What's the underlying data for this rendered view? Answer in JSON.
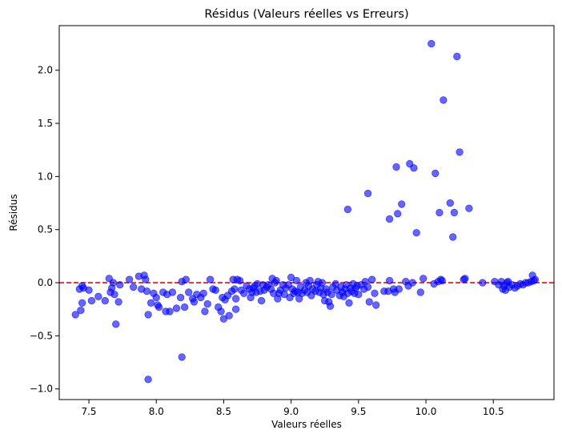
{
  "chart_data": {
    "type": "scatter",
    "title": "Résidus (Valeurs réelles vs Erreurs)",
    "xlabel": "Valeurs réelles",
    "ylabel": "Résidus",
    "xlim": [
      7.28,
      10.95
    ],
    "ylim": [
      -1.1,
      2.42
    ],
    "x_ticks": [
      7.5,
      8.0,
      8.5,
      9.0,
      9.5,
      10.0,
      10.5
    ],
    "x_tick_labels": [
      "7.5",
      "8.0",
      "8.5",
      "9.0",
      "9.5",
      "10.0",
      "10.5"
    ],
    "y_ticks": [
      -1.0,
      -0.5,
      0.0,
      0.5,
      1.0,
      1.5,
      2.0
    ],
    "y_tick_labels": [
      "−1.0",
      "−0.5",
      "0.0",
      "0.5",
      "1.0",
      "1.5",
      "2.0"
    ],
    "grid": false,
    "point_color": "#0000ff",
    "point_alpha": 0.6,
    "reference_line": {
      "y": 0,
      "color": "#ff0000",
      "style": "dashed"
    },
    "points": [
      [
        7.4,
        -0.3
      ],
      [
        7.43,
        -0.06
      ],
      [
        7.45,
        -0.03
      ],
      [
        7.46,
        -0.05
      ],
      [
        7.45,
        -0.19
      ],
      [
        7.44,
        -0.26
      ],
      [
        7.5,
        -0.07
      ],
      [
        7.52,
        -0.17
      ],
      [
        7.57,
        -0.13
      ],
      [
        7.62,
        -0.17
      ],
      [
        7.65,
        0.04
      ],
      [
        7.66,
        -0.09
      ],
      [
        7.67,
        -0.05
      ],
      [
        7.68,
        0.0
      ],
      [
        7.69,
        -0.11
      ],
      [
        7.7,
        -0.39
      ],
      [
        7.72,
        -0.18
      ],
      [
        7.73,
        -0.02
      ],
      [
        7.8,
        0.03
      ],
      [
        7.83,
        -0.04
      ],
      [
        7.87,
        0.06
      ],
      [
        7.89,
        -0.06
      ],
      [
        7.91,
        0.07
      ],
      [
        7.92,
        0.03
      ],
      [
        7.93,
        -0.08
      ],
      [
        7.94,
        -0.3
      ],
      [
        7.94,
        -0.91
      ],
      [
        7.96,
        -0.19
      ],
      [
        7.98,
        -0.1
      ],
      [
        8.0,
        -0.14
      ],
      [
        8.01,
        -0.21
      ],
      [
        8.02,
        -0.23
      ],
      [
        8.05,
        -0.09
      ],
      [
        8.07,
        -0.27
      ],
      [
        8.08,
        -0.11
      ],
      [
        8.1,
        -0.27
      ],
      [
        8.12,
        -0.09
      ],
      [
        8.15,
        -0.24
      ],
      [
        8.18,
        -0.14
      ],
      [
        8.19,
        -0.7
      ],
      [
        8.19,
        0.01
      ],
      [
        8.21,
        -0.23
      ],
      [
        8.22,
        0.03
      ],
      [
        8.24,
        -0.09
      ],
      [
        8.27,
        -0.15
      ],
      [
        8.28,
        -0.18
      ],
      [
        8.3,
        -0.11
      ],
      [
        8.33,
        -0.14
      ],
      [
        8.35,
        -0.1
      ],
      [
        8.36,
        -0.27
      ],
      [
        8.38,
        -0.2
      ],
      [
        8.4,
        0.03
      ],
      [
        8.42,
        -0.06
      ],
      [
        8.44,
        -0.07
      ],
      [
        8.46,
        -0.23
      ],
      [
        8.48,
        -0.27
      ],
      [
        8.49,
        -0.14
      ],
      [
        8.5,
        -0.34
      ],
      [
        8.51,
        -0.16
      ],
      [
        8.53,
        -0.12
      ],
      [
        8.54,
        -0.31
      ],
      [
        8.56,
        -0.08
      ],
      [
        8.57,
        0.03
      ],
      [
        8.58,
        -0.06
      ],
      [
        8.59,
        -0.15
      ],
      [
        8.59,
        -0.25
      ],
      [
        8.6,
        0.03
      ],
      [
        8.62,
        0.02
      ],
      [
        8.63,
        -0.07
      ],
      [
        8.65,
        -0.1
      ],
      [
        8.67,
        -0.03
      ],
      [
        8.69,
        -0.06
      ],
      [
        8.7,
        -0.14
      ],
      [
        8.71,
        -0.09
      ],
      [
        8.72,
        -0.05
      ],
      [
        8.73,
        -0.03
      ],
      [
        8.74,
        -0.09
      ],
      [
        8.75,
        -0.01
      ],
      [
        8.77,
        -0.08
      ],
      [
        8.78,
        -0.17
      ],
      [
        8.79,
        -0.02
      ],
      [
        8.8,
        -0.07
      ],
      [
        8.82,
        -0.04
      ],
      [
        8.83,
        -0.02
      ],
      [
        8.85,
        -0.06
      ],
      [
        8.86,
        0.04
      ],
      [
        8.87,
        -0.1
      ],
      [
        8.88,
        0.0
      ],
      [
        8.89,
        0.02
      ],
      [
        8.9,
        -0.15
      ],
      [
        8.91,
        -0.1
      ],
      [
        8.92,
        -0.07
      ],
      [
        8.94,
        -0.02
      ],
      [
        8.95,
        -0.11
      ],
      [
        8.96,
        -0.05
      ],
      [
        8.98,
        -0.02
      ],
      [
        8.99,
        -0.14
      ],
      [
        9.0,
        0.05
      ],
      [
        9.01,
        -0.06
      ],
      [
        9.02,
        -0.1
      ],
      [
        9.03,
        -0.08
      ],
      [
        9.04,
        0.02
      ],
      [
        9.05,
        -0.09
      ],
      [
        9.06,
        -0.15
      ],
      [
        9.07,
        -0.04
      ],
      [
        9.08,
        -0.1
      ],
      [
        9.1,
        -0.07
      ],
      [
        9.11,
        0.0
      ],
      [
        9.12,
        -0.09
      ],
      [
        9.13,
        -0.03
      ],
      [
        9.14,
        0.02
      ],
      [
        9.15,
        -0.12
      ],
      [
        9.16,
        -0.06
      ],
      [
        9.18,
        -0.08
      ],
      [
        9.19,
        -0.02
      ],
      [
        9.2,
        0.01
      ],
      [
        9.21,
        -0.09
      ],
      [
        9.22,
        -0.05
      ],
      [
        9.23,
        0.0
      ],
      [
        9.24,
        -0.11
      ],
      [
        9.25,
        -0.17
      ],
      [
        9.26,
        -0.06
      ],
      [
        9.27,
        -0.09
      ],
      [
        9.28,
        -0.18
      ],
      [
        9.29,
        -0.22
      ],
      [
        9.3,
        -0.11
      ],
      [
        9.31,
        -0.04
      ],
      [
        9.33,
        -0.01
      ],
      [
        9.34,
        -0.07
      ],
      [
        9.36,
        -0.12
      ],
      [
        9.37,
        -0.04
      ],
      [
        9.38,
        -0.09
      ],
      [
        9.39,
        -0.13
      ],
      [
        9.4,
        -0.06
      ],
      [
        9.41,
        -0.02
      ],
      [
        9.42,
        -0.1
      ],
      [
        9.43,
        -0.19
      ],
      [
        9.44,
        -0.05
      ],
      [
        9.45,
        -0.08
      ],
      [
        9.46,
        -0.01
      ],
      [
        9.47,
        -0.1
      ],
      [
        9.48,
        -0.05
      ],
      [
        9.49,
        -0.03
      ],
      [
        9.5,
        -0.11
      ],
      [
        9.52,
        -0.02
      ],
      [
        9.54,
        -0.06
      ],
      [
        9.55,
        0.01
      ],
      [
        9.57,
        -0.04
      ],
      [
        9.58,
        -0.18
      ],
      [
        9.6,
        0.03
      ],
      [
        9.62,
        -0.1
      ],
      [
        9.63,
        -0.21
      ],
      [
        9.42,
        0.69
      ],
      [
        9.57,
        0.84
      ],
      [
        9.69,
        -0.08
      ],
      [
        9.72,
        -0.08
      ],
      [
        9.73,
        0.02
      ],
      [
        9.73,
        0.6
      ],
      [
        9.76,
        -0.06
      ],
      [
        9.77,
        -0.09
      ],
      [
        9.78,
        1.09
      ],
      [
        9.79,
        0.65
      ],
      [
        9.8,
        -0.06
      ],
      [
        9.82,
        0.74
      ],
      [
        9.85,
        0.01
      ],
      [
        9.87,
        -0.03
      ],
      [
        9.88,
        1.12
      ],
      [
        9.9,
        0.0
      ],
      [
        9.91,
        1.08
      ],
      [
        9.93,
        0.47
      ],
      [
        9.96,
        -0.09
      ],
      [
        9.98,
        0.04
      ],
      [
        10.04,
        2.25
      ],
      [
        10.06,
        -0.01
      ],
      [
        10.07,
        1.03
      ],
      [
        10.09,
        0.01
      ],
      [
        10.1,
        0.66
      ],
      [
        10.11,
        0.03
      ],
      [
        10.12,
        0.02
      ],
      [
        10.13,
        1.72
      ],
      [
        10.18,
        0.75
      ],
      [
        10.2,
        0.43
      ],
      [
        10.21,
        0.66
      ],
      [
        10.23,
        2.13
      ],
      [
        10.25,
        1.23
      ],
      [
        10.28,
        0.03
      ],
      [
        10.29,
        0.04
      ],
      [
        10.32,
        0.7
      ],
      [
        10.42,
        0.0
      ],
      [
        10.51,
        0.01
      ],
      [
        10.54,
        -0.02
      ],
      [
        10.56,
        0.01
      ],
      [
        10.57,
        -0.06
      ],
      [
        10.58,
        -0.03
      ],
      [
        10.59,
        -0.07
      ],
      [
        10.6,
        0.0
      ],
      [
        10.61,
        0.01
      ],
      [
        10.62,
        -0.04
      ],
      [
        10.64,
        -0.02
      ],
      [
        10.66,
        -0.05
      ],
      [
        10.68,
        -0.03
      ],
      [
        10.7,
        -0.01
      ],
      [
        10.72,
        -0.02
      ],
      [
        10.74,
        0.0
      ],
      [
        10.76,
        0.0
      ],
      [
        10.78,
        0.01
      ],
      [
        10.79,
        0.07
      ],
      [
        10.8,
        0.02
      ],
      [
        10.81,
        0.03
      ]
    ]
  }
}
